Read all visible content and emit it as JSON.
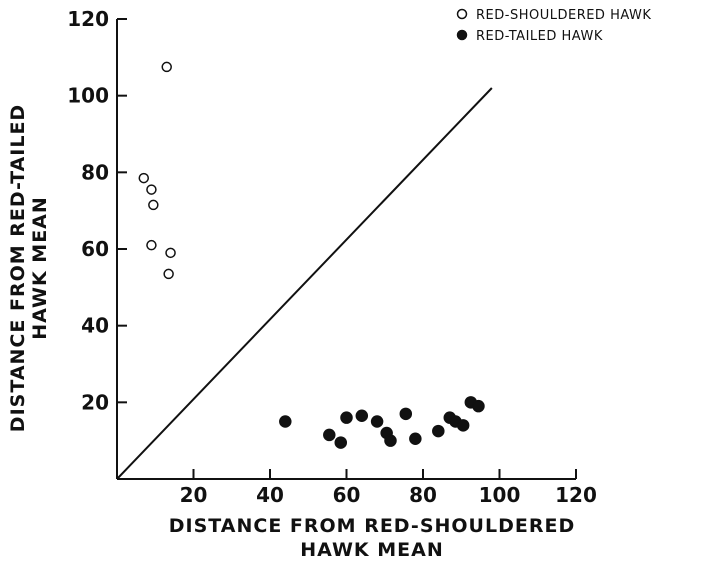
{
  "chart_data": {
    "type": "scatter",
    "xlabel": [
      "DISTANCE FROM RED-SHOULDERED",
      "HAWK MEAN"
    ],
    "ylabel": [
      "DISTANCE FROM RED-TAILED",
      "HAWK MEAN"
    ],
    "xlim": [
      0,
      120
    ],
    "ylim": [
      0,
      120
    ],
    "xticks": [
      "20",
      "40",
      "60",
      "80",
      "100",
      "120"
    ],
    "yticks": [
      "20",
      "40",
      "60",
      "80",
      "100",
      "120"
    ],
    "grid": false,
    "legend_position": "top-right",
    "reference_line": {
      "from": [
        0,
        0
      ],
      "to": [
        98,
        102
      ]
    },
    "series": [
      {
        "name": "RED-SHOULDERED HAWK",
        "marker": "open-circle",
        "points": [
          [
            13,
            107.5
          ],
          [
            7,
            78.5
          ],
          [
            9,
            75.5
          ],
          [
            9.5,
            71.5
          ],
          [
            9,
            61
          ],
          [
            14,
            59
          ],
          [
            13.5,
            53.5
          ]
        ]
      },
      {
        "name": "RED-TAILED HAWK",
        "marker": "filled-circle",
        "points": [
          [
            44,
            15
          ],
          [
            55.5,
            11.5
          ],
          [
            58.5,
            9.5
          ],
          [
            60,
            16
          ],
          [
            64,
            16.5
          ],
          [
            68,
            15
          ],
          [
            70.5,
            12
          ],
          [
            71.5,
            10
          ],
          [
            75.5,
            17
          ],
          [
            78,
            10.5
          ],
          [
            84,
            12.5
          ],
          [
            87,
            16
          ],
          [
            88.5,
            15
          ],
          [
            90.5,
            14
          ],
          [
            92.5,
            20
          ],
          [
            94.5,
            19
          ]
        ]
      }
    ]
  }
}
